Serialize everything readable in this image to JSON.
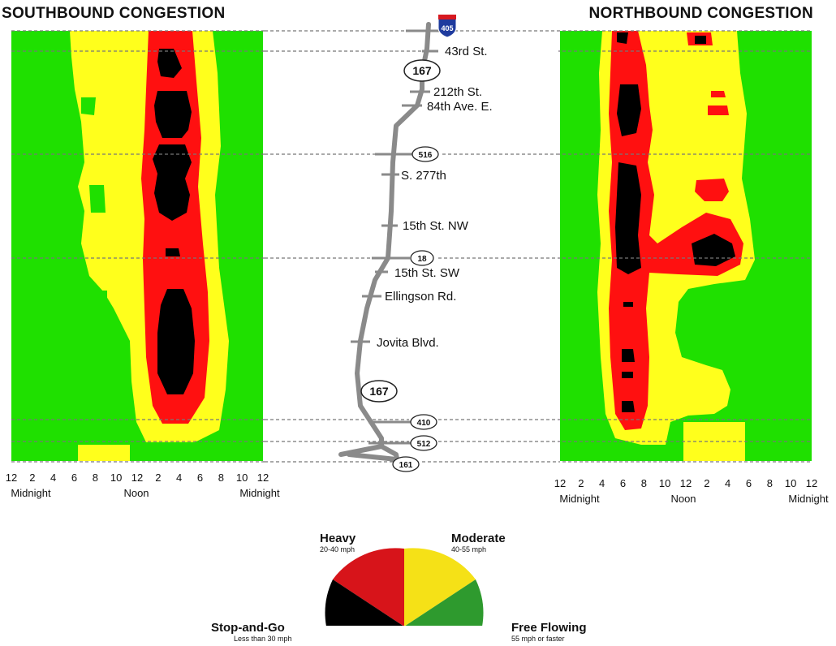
{
  "chart_data": [
    {
      "type": "heatmap",
      "title": "SOUTHBOUND CONGESTION",
      "x_ticks": [
        "12",
        "2",
        "4",
        "6",
        "8",
        "10",
        "12",
        "2",
        "4",
        "6",
        "8",
        "10",
        "12"
      ],
      "x_labels": [
        "Midnight",
        "Noon",
        "Midnight"
      ],
      "hotspots": [
        {
          "level": "stop-and-go",
          "hour_start": 15,
          "hour_end": 16.2,
          "from": "43rd St.",
          "to": "84th Ave. E."
        },
        {
          "level": "stop-and-go",
          "hour_start": 15,
          "hour_end": 16.5,
          "from": "84th Ave. E.",
          "to": "S. 277th"
        },
        {
          "level": "stop-and-go",
          "hour_start": 15,
          "hour_end": 16.5,
          "from": "Ellingson Rd.",
          "to": "167 (south)"
        }
      ]
    },
    {
      "type": "heatmap",
      "title": "NORTHBOUND CONGESTION",
      "x_ticks": [
        "12",
        "2",
        "4",
        "6",
        "8",
        "10",
        "12",
        "2",
        "4",
        "6",
        "8",
        "10",
        "12"
      ],
      "x_labels": [
        "Midnight",
        "Noon",
        "Midnight"
      ],
      "hotspots": [
        {
          "level": "stop-and-go",
          "hour_start": 5.8,
          "hour_end": 7.5,
          "from": "212th St.",
          "to": "15th St. SW"
        },
        {
          "level": "stop-and-go",
          "hour_start": 14.5,
          "hour_end": 16.5,
          "from": "15th St. NW",
          "to": "18"
        },
        {
          "level": "heavy",
          "hour_start": 5.5,
          "hour_end": 8,
          "from": "43rd St.",
          "to": "410"
        }
      ]
    }
  ],
  "route": {
    "top_shield": "405",
    "labels": [
      "43rd St.",
      "212th St.",
      "84th Ave. E.",
      "S. 277th",
      "15th St. NW",
      "15th St. SW",
      "Ellingson Rd.",
      "Jovita Blvd."
    ],
    "shields": [
      "167",
      "516",
      "18",
      "167",
      "410",
      "512",
      "161"
    ]
  },
  "legend": {
    "items": [
      {
        "name": "Heavy",
        "sub": "20-40 mph",
        "color": "#d7141a"
      },
      {
        "name": "Moderate",
        "sub": "40-55 mph",
        "color": "#f5e117"
      },
      {
        "name": "Stop-and-Go",
        "sub": "Less than 30 mph",
        "color": "#000000"
      },
      {
        "name": "Free Flowing",
        "sub": "55 mph or faster",
        "color": "#2e9a2e"
      }
    ]
  },
  "colors": {
    "free": "#1fe000",
    "moderate": "#ffff1c",
    "heavy": "#ff1010",
    "stop": "#000000"
  }
}
